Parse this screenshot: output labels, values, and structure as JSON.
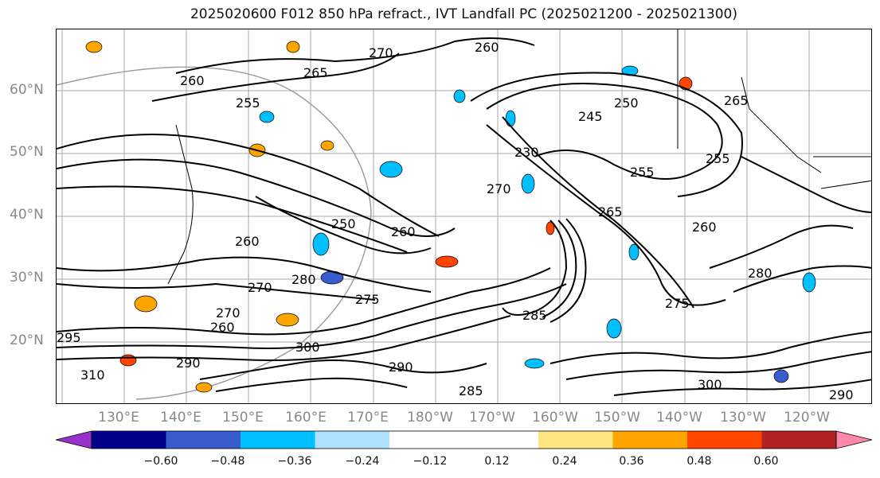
{
  "title": "2025020600 F012 850 hPa refract., IVT Landfall PC (2025021200 - 2025021300)",
  "lat_labels": [
    "60°N",
    "50°N",
    "40°N",
    "30°N",
    "20°N"
  ],
  "lon_labels": [
    "130°E",
    "140°E",
    "150°E",
    "160°E",
    "170°E",
    "180°W",
    "170°W",
    "160°W",
    "150°W",
    "140°W",
    "130°W",
    "120°W"
  ],
  "contour_labels": [
    "270",
    "260",
    "265",
    "260",
    "255",
    "250",
    "245",
    "265",
    "255",
    "230",
    "255",
    "270",
    "265",
    "260",
    "260",
    "250",
    "260",
    "280",
    "270",
    "275",
    "285",
    "280",
    "275",
    "300",
    "290",
    "285",
    "290",
    "300",
    "310",
    "290",
    "260",
    "270",
    "295"
  ],
  "colorbar": {
    "colors": [
      "#9932cc",
      "#00008b",
      "#3a5bcc",
      "#00bfff",
      "#b0e0ff",
      "#ffffff",
      "#ffffff",
      "#ffe680",
      "#ffa500",
      "#ff4500",
      "#b22222",
      "#ff88aa"
    ],
    "ticks": [
      "−0.60",
      "−0.48",
      "−0.36",
      "−0.24",
      "−0.12",
      "0.12",
      "0.24",
      "0.36",
      "0.48",
      "0.60"
    ]
  }
}
